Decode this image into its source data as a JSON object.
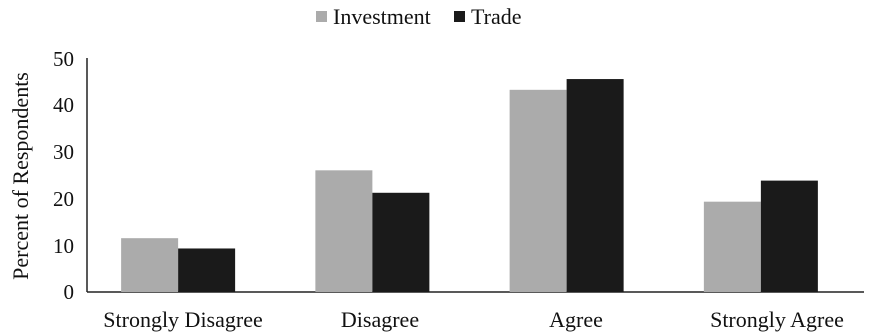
{
  "chart_data": {
    "type": "bar",
    "categories": [
      "Strongly Disagree",
      "Disagree",
      "Agree",
      "Strongly Agree"
    ],
    "series": [
      {
        "name": "Investment",
        "values": [
          11.5,
          26,
          43.2,
          19.3
        ],
        "color": "#ababab"
      },
      {
        "name": "Trade",
        "values": [
          9.3,
          21.2,
          45.5,
          23.8
        ],
        "color": "#1a1a1a"
      }
    ],
    "title": "",
    "xlabel": "",
    "ylabel": "Percent of Respondents",
    "ylim": [
      0,
      50
    ],
    "yticks": [
      "0",
      "10",
      "20",
      "30",
      "40",
      "50"
    ],
    "grid": false,
    "legend_position": "top-center"
  }
}
